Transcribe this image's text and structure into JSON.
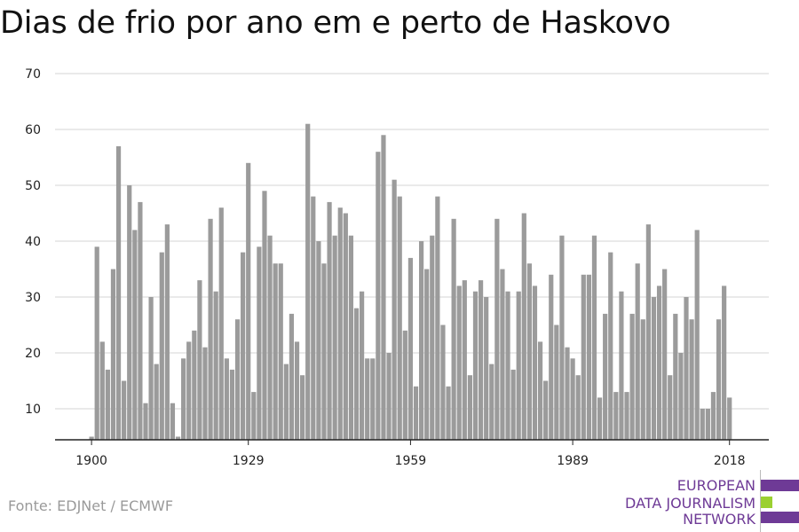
{
  "title": "Dias de frio por ano em e perto de Haskovo",
  "source": "Fonte: EDJNet / ECMWF",
  "logo": {
    "lines": [
      "EUROPEAN",
      "DATA JOURNALISM",
      "NETWORK"
    ],
    "colors": [
      "#6e3a96",
      "#9bd031",
      "#6e3a96"
    ]
  },
  "chart_data": {
    "type": "bar",
    "title": "Dias de frio por ano em e perto de Haskovo",
    "xlabel": "",
    "ylabel": "",
    "bar_color": "#9b9b9b",
    "grid": true,
    "ylim": [
      4,
      70
    ],
    "yticks": [
      10,
      20,
      30,
      40,
      50,
      60,
      70
    ],
    "xticks": [
      1900,
      1929,
      1959,
      1989,
      2018
    ],
    "x": [
      1900,
      1901,
      1902,
      1903,
      1904,
      1905,
      1906,
      1907,
      1908,
      1909,
      1910,
      1911,
      1912,
      1913,
      1914,
      1915,
      1916,
      1917,
      1918,
      1919,
      1920,
      1921,
      1922,
      1923,
      1924,
      1925,
      1926,
      1927,
      1928,
      1929,
      1930,
      1931,
      1932,
      1933,
      1934,
      1935,
      1936,
      1937,
      1938,
      1939,
      1940,
      1941,
      1942,
      1943,
      1944,
      1945,
      1946,
      1947,
      1948,
      1949,
      1950,
      1951,
      1952,
      1953,
      1954,
      1955,
      1956,
      1957,
      1958,
      1959,
      1960,
      1961,
      1962,
      1963,
      1964,
      1965,
      1966,
      1967,
      1968,
      1969,
      1970,
      1971,
      1972,
      1973,
      1974,
      1975,
      1976,
      1977,
      1978,
      1979,
      1980,
      1981,
      1982,
      1983,
      1984,
      1985,
      1986,
      1987,
      1988,
      1989,
      1990,
      1991,
      1992,
      1993,
      1994,
      1995,
      1996,
      1997,
      1998,
      1999,
      2000,
      2001,
      2002,
      2003,
      2004,
      2005,
      2006,
      2007,
      2008,
      2009,
      2010,
      2011,
      2012,
      2013,
      2014,
      2015,
      2016,
      2017,
      2018
    ],
    "values": [
      5,
      39,
      22,
      17,
      35,
      57,
      15,
      50,
      42,
      47,
      11,
      30,
      18,
      38,
      43,
      11,
      5,
      19,
      22,
      24,
      33,
      21,
      44,
      31,
      46,
      19,
      17,
      26,
      38,
      54,
      13,
      39,
      49,
      41,
      36,
      36,
      18,
      27,
      22,
      16,
      61,
      48,
      40,
      36,
      47,
      41,
      46,
      45,
      41,
      28,
      31,
      19,
      19,
      56,
      59,
      20,
      51,
      48,
      24,
      37,
      14,
      40,
      35,
      41,
      48,
      25,
      14,
      44,
      32,
      33,
      16,
      31,
      33,
      30,
      18,
      44,
      35,
      31,
      17,
      31,
      45,
      36,
      32,
      22,
      15,
      34,
      25,
      41,
      21,
      19,
      16,
      34,
      34,
      41,
      12,
      27,
      38,
      13,
      31,
      13,
      27,
      36,
      26,
      43,
      30,
      32,
      35,
      16,
      27,
      20,
      30,
      26,
      42,
      10,
      10,
      13,
      26,
      32,
      12
    ]
  }
}
